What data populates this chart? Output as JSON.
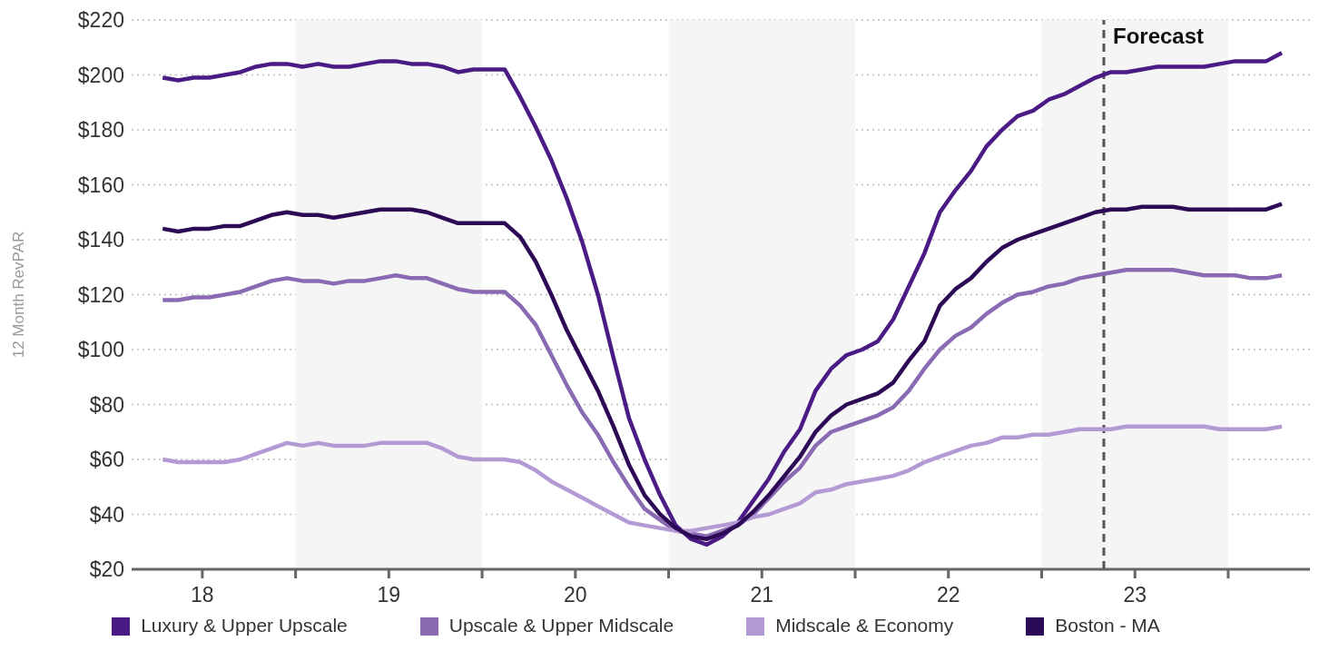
{
  "chart_data": {
    "type": "line",
    "ylabel": "12 Month RevPAR",
    "x": [
      "2018-04-15",
      "2018-05-15",
      "2018-06-15",
      "2018-07-15",
      "2018-08-15",
      "2018-09-15",
      "2018-10-15",
      "2018-11-15",
      "2018-12-15",
      "2019-01-15",
      "2019-02-15",
      "2019-03-15",
      "2019-04-15",
      "2019-05-15",
      "2019-06-15",
      "2019-07-15",
      "2019-08-15",
      "2019-09-15",
      "2019-10-15",
      "2019-11-15",
      "2019-12-15",
      "2020-01-15",
      "2020-02-15",
      "2020-03-15",
      "2020-04-15",
      "2020-05-15",
      "2020-06-15",
      "2020-07-15",
      "2020-08-15",
      "2020-09-15",
      "2020-10-15",
      "2020-11-15",
      "2020-12-15",
      "2021-01-15",
      "2021-02-15",
      "2021-03-15",
      "2021-04-15",
      "2021-05-15",
      "2021-06-15",
      "2021-07-15",
      "2021-08-15",
      "2021-09-15",
      "2021-10-15",
      "2021-11-15",
      "2021-12-15",
      "2022-01-15",
      "2022-02-15",
      "2022-03-15",
      "2022-04-15",
      "2022-05-15",
      "2022-06-15",
      "2022-07-15",
      "2022-08-15",
      "2022-09-15",
      "2022-10-15",
      "2022-11-15",
      "2022-12-15",
      "2023-01-15",
      "2023-02-15",
      "2023-03-15",
      "2023-04-15",
      "2023-05-15",
      "2023-06-15",
      "2023-07-15",
      "2023-08-15",
      "2023-09-15",
      "2023-10-15",
      "2023-11-15",
      "2023-12-15",
      "2024-01-15",
      "2024-02-15",
      "2024-03-15",
      "2024-04-15"
    ],
    "series": [
      {
        "name": "Luxury & Upper Upscale",
        "color": "#4a1b85",
        "values": [
          199,
          198,
          199,
          199,
          200,
          201,
          203,
          204,
          204,
          203,
          204,
          203,
          203,
          204,
          205,
          205,
          204,
          204,
          203,
          201,
          202,
          202,
          202,
          192,
          181,
          169,
          155,
          139,
          120,
          97,
          75,
          60,
          47,
          36,
          31,
          29,
          32,
          37,
          45,
          53,
          63,
          71,
          85,
          93,
          98,
          100,
          103,
          111,
          123,
          135,
          150,
          158,
          165,
          174,
          180,
          185,
          187,
          191,
          193,
          196,
          199,
          201,
          201,
          202,
          203,
          203,
          203,
          203,
          204,
          205,
          205,
          205,
          208
        ]
      },
      {
        "name": "Upscale & Upper Midscale",
        "color": "#8a6bb3",
        "values": [
          118,
          118,
          119,
          119,
          120,
          121,
          123,
          125,
          126,
          125,
          125,
          124,
          125,
          125,
          126,
          127,
          126,
          126,
          124,
          122,
          121,
          121,
          121,
          116,
          109,
          98,
          87,
          77,
          69,
          59,
          50,
          42,
          38,
          34,
          33,
          32,
          34,
          36,
          40,
          46,
          52,
          57,
          65,
          70,
          72,
          74,
          76,
          79,
          85,
          93,
          100,
          105,
          108,
          113,
          117,
          120,
          121,
          123,
          124,
          126,
          127,
          128,
          129,
          129,
          129,
          129,
          128,
          127,
          127,
          127,
          126,
          126,
          127
        ]
      },
      {
        "name": "Midscale & Economy",
        "color": "#b39ad4",
        "values": [
          60,
          59,
          59,
          59,
          59,
          60,
          62,
          64,
          66,
          65,
          66,
          65,
          65,
          65,
          66,
          66,
          66,
          66,
          64,
          61,
          60,
          60,
          60,
          59,
          56,
          52,
          49,
          46,
          43,
          40,
          37,
          36,
          35,
          34,
          34,
          35,
          36,
          37,
          39,
          40,
          42,
          44,
          48,
          49,
          51,
          52,
          53,
          54,
          56,
          59,
          61,
          63,
          65,
          66,
          68,
          68,
          69,
          69,
          70,
          71,
          71,
          71,
          72,
          72,
          72,
          72,
          72,
          72,
          71,
          71,
          71,
          71,
          72
        ]
      },
      {
        "name": "Boston - MA",
        "color": "#2d0a55",
        "values": [
          144,
          143,
          144,
          144,
          145,
          145,
          147,
          149,
          150,
          149,
          149,
          148,
          149,
          150,
          151,
          151,
          151,
          150,
          148,
          146,
          146,
          146,
          146,
          141,
          132,
          120,
          107,
          96,
          85,
          72,
          58,
          47,
          40,
          35,
          32,
          31,
          33,
          36,
          41,
          47,
          54,
          61,
          70,
          76,
          80,
          82,
          84,
          88,
          96,
          103,
          116,
          122,
          126,
          132,
          137,
          140,
          142,
          144,
          146,
          148,
          150,
          151,
          151,
          152,
          152,
          152,
          151,
          151,
          151,
          151,
          151,
          151,
          153
        ]
      }
    ],
    "xlim": [
      "2018-02-15",
      "2024-06-09"
    ],
    "xticks": [
      {
        "value": "2018-07-01",
        "label": "18"
      },
      {
        "value": "2019-01-01",
        "label": null
      },
      {
        "value": "2019-07-01",
        "label": "19"
      },
      {
        "value": "2020-01-01",
        "label": null
      },
      {
        "value": "2020-07-01",
        "label": "20"
      },
      {
        "value": "2021-01-01",
        "label": null
      },
      {
        "value": "2021-07-01",
        "label": "21"
      },
      {
        "value": "2022-01-01",
        "label": null
      },
      {
        "value": "2022-07-01",
        "label": "22"
      },
      {
        "value": "2023-01-01",
        "label": null
      },
      {
        "value": "2023-07-01",
        "label": "23"
      },
      {
        "value": "2024-01-01",
        "label": null
      }
    ],
    "ylim": [
      20,
      220
    ],
    "yticks": [
      {
        "value": 20,
        "label": "$20"
      },
      {
        "value": 40,
        "label": "$40"
      },
      {
        "value": 60,
        "label": "$60"
      },
      {
        "value": 80,
        "label": "$80"
      },
      {
        "value": 100,
        "label": "$100"
      },
      {
        "value": 120,
        "label": "$120"
      },
      {
        "value": 140,
        "label": "$140"
      },
      {
        "value": 160,
        "label": "$160"
      },
      {
        "value": 180,
        "label": "$180"
      },
      {
        "value": 200,
        "label": "$200"
      },
      {
        "value": 220,
        "label": "$220"
      }
    ],
    "bands": [
      {
        "axis": "x",
        "from": "2019-01-01",
        "to": "2020-01-01",
        "color": "#f5f5f5"
      },
      {
        "axis": "x",
        "from": "2021-01-01",
        "to": "2022-01-01",
        "color": "#f5f5f5"
      },
      {
        "axis": "x",
        "from": "2023-01-01",
        "to": "2024-01-01",
        "color": "#f5f5f5"
      }
    ],
    "ref_lines": [
      {
        "axis": "x",
        "value": "2023-05-01",
        "label": "Forecast",
        "color": "#555555",
        "line_style": "dashed"
      }
    ],
    "grid": "y",
    "legend": "bottom"
  }
}
